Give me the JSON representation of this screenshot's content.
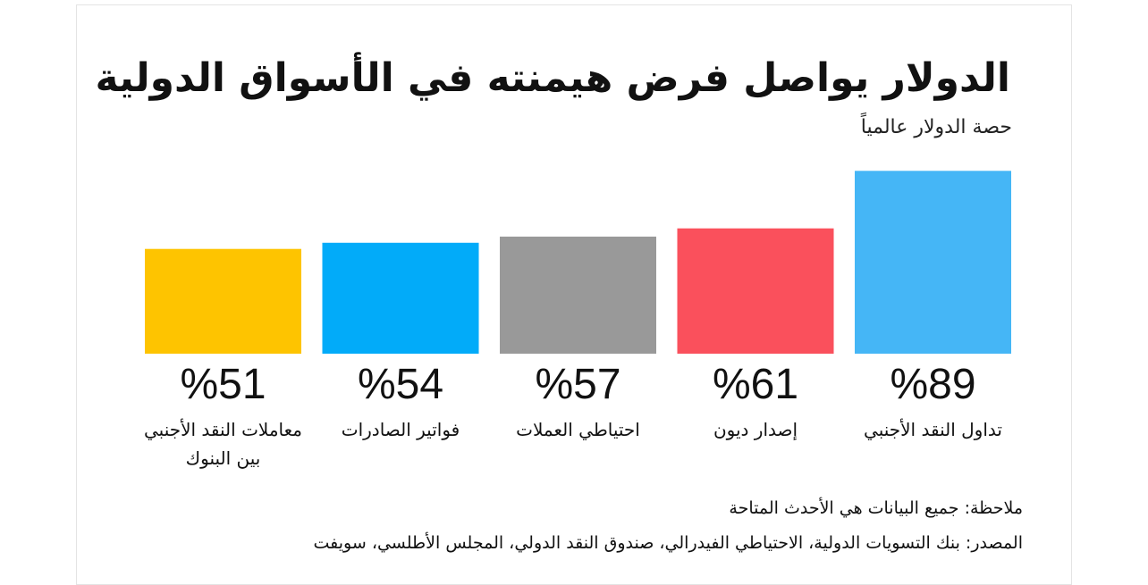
{
  "chart_data": {
    "type": "bar",
    "title": "الدولار يواصل فرض هيمنته في الأسواق الدولية",
    "subtitle": "حصة الدولار عالمياً",
    "categories": [
      "تداول النقد الأجنبي",
      "إصدار ديون",
      "احتياطي العملات",
      "فواتير الصادرات",
      "معاملات النقد الأجنبي بين البنوك"
    ],
    "category_lines": [
      [
        "تداول النقد الأجنبي"
      ],
      [
        "إصدار ديون"
      ],
      [
        "احتياطي العملات"
      ],
      [
        "فواتير الصادرات"
      ],
      [
        "معاملات النقد الأجنبي",
        "بين البنوك"
      ]
    ],
    "values": [
      89,
      61,
      57,
      54,
      51
    ],
    "value_labels": [
      "%89",
      "%61",
      "%57",
      "%54",
      "%51"
    ],
    "colors": [
      "#45b6f6",
      "#fa505c",
      "#999999",
      "#02abf9",
      "#fec400"
    ],
    "unit": "%",
    "ylim": [
      0,
      100
    ],
    "grid": false,
    "direction": "rtl"
  },
  "footer": {
    "note": "ملاحظة: جميع البيانات هي الأحدث المتاحة",
    "source": "المصدر: بنك التسويات الدولية، الاحتياطي الفيدرالي، صندوق النقد الدولي، المجلس الأطلسي، سويفت"
  }
}
